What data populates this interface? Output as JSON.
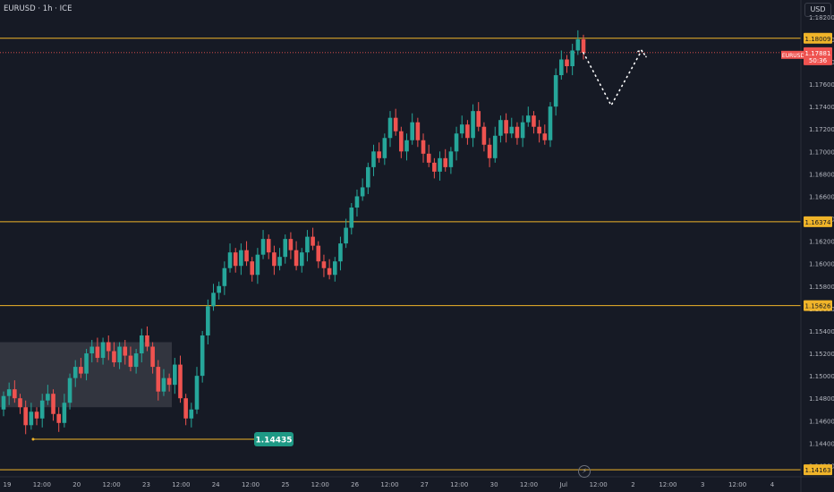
{
  "header": {
    "symbol_title": "EURUSD · 1h · ICE",
    "currency_button": "USD"
  },
  "icons": {
    "replay": "lightning-icon"
  },
  "colors": {
    "background": "#161a25",
    "bull": "#26a69a",
    "bear": "#ef5350",
    "level": "#f0b429",
    "axis_text": "#b2b5be",
    "grid_border": "#2a2e39"
  },
  "chart_data": {
    "type": "candlestick",
    "symbol": "EURUSD",
    "timeframe": "1h",
    "ylim": [
      1.141,
      1.1835
    ],
    "x_ticks": [
      "19",
      "12:00",
      "20",
      "12:00",
      "23",
      "12:00",
      "24",
      "12:00",
      "25",
      "12:00",
      "26",
      "12:00",
      "27",
      "12:00",
      "30",
      "12:00",
      "Jul",
      "12:00",
      "2",
      "12:00",
      "3",
      "12:00",
      "4"
    ],
    "y_ticks": [
      "1.18200",
      "1.18000",
      "1.17800",
      "1.17600",
      "1.17400",
      "1.17200",
      "1.17000",
      "1.16800",
      "1.16600",
      "1.16400",
      "1.16200",
      "1.16000",
      "1.15800",
      "1.15600",
      "1.15400",
      "1.15200",
      "1.15000",
      "1.14800",
      "1.14600",
      "1.14400",
      "1.14200"
    ],
    "levels": [
      {
        "label": "1.18009",
        "value": 1.18009
      },
      {
        "label": "1.16374",
        "value": 1.16374
      },
      {
        "label": "1.15626",
        "value": 1.15626
      },
      {
        "label": "1.14163",
        "value": 1.14163
      }
    ],
    "last_price": {
      "symbol": "EURUSD",
      "price": "1.17881",
      "countdown": "50:36",
      "value": 1.17881
    },
    "low_marker": {
      "label": "1.14435",
      "value": 1.14435
    },
    "consolidation_range": [
      1.1472,
      1.153
    ],
    "projection": [
      1.17881,
      1.1741,
      1.179
    ],
    "closes": [
      1.1482,
      1.1488,
      1.148,
      1.1472,
      1.1456,
      1.1468,
      1.1462,
      1.1478,
      1.1484,
      1.1466,
      1.1458,
      1.1476,
      1.1498,
      1.1508,
      1.1502,
      1.152,
      1.1526,
      1.1516,
      1.153,
      1.1522,
      1.1512,
      1.1526,
      1.1518,
      1.1508,
      1.152,
      1.1536,
      1.1526,
      1.1508,
      1.1486,
      1.1498,
      1.1492,
      1.151,
      1.148,
      1.1462,
      1.147,
      1.15,
      1.1536,
      1.1562,
      1.1574,
      1.158,
      1.1596,
      1.161,
      1.1598,
      1.1612,
      1.1602,
      1.159,
      1.1608,
      1.1622,
      1.161,
      1.1598,
      1.1606,
      1.1622,
      1.1612,
      1.1598,
      1.161,
      1.1624,
      1.1616,
      1.1602,
      1.1596,
      1.159,
      1.1602,
      1.1618,
      1.1632,
      1.165,
      1.166,
      1.1668,
      1.1686,
      1.17,
      1.1694,
      1.1712,
      1.173,
      1.1718,
      1.17,
      1.171,
      1.1726,
      1.171,
      1.1698,
      1.169,
      1.1682,
      1.1694,
      1.1686,
      1.17,
      1.1716,
      1.1724,
      1.1712,
      1.1736,
      1.1722,
      1.1706,
      1.1694,
      1.1714,
      1.1728,
      1.1716,
      1.1722,
      1.1712,
      1.1726,
      1.1732,
      1.1722,
      1.1716,
      1.171,
      1.174,
      1.1768,
      1.1782,
      1.1776,
      1.179,
      1.18,
      1.1788
    ],
    "x_start": 1.147
  }
}
